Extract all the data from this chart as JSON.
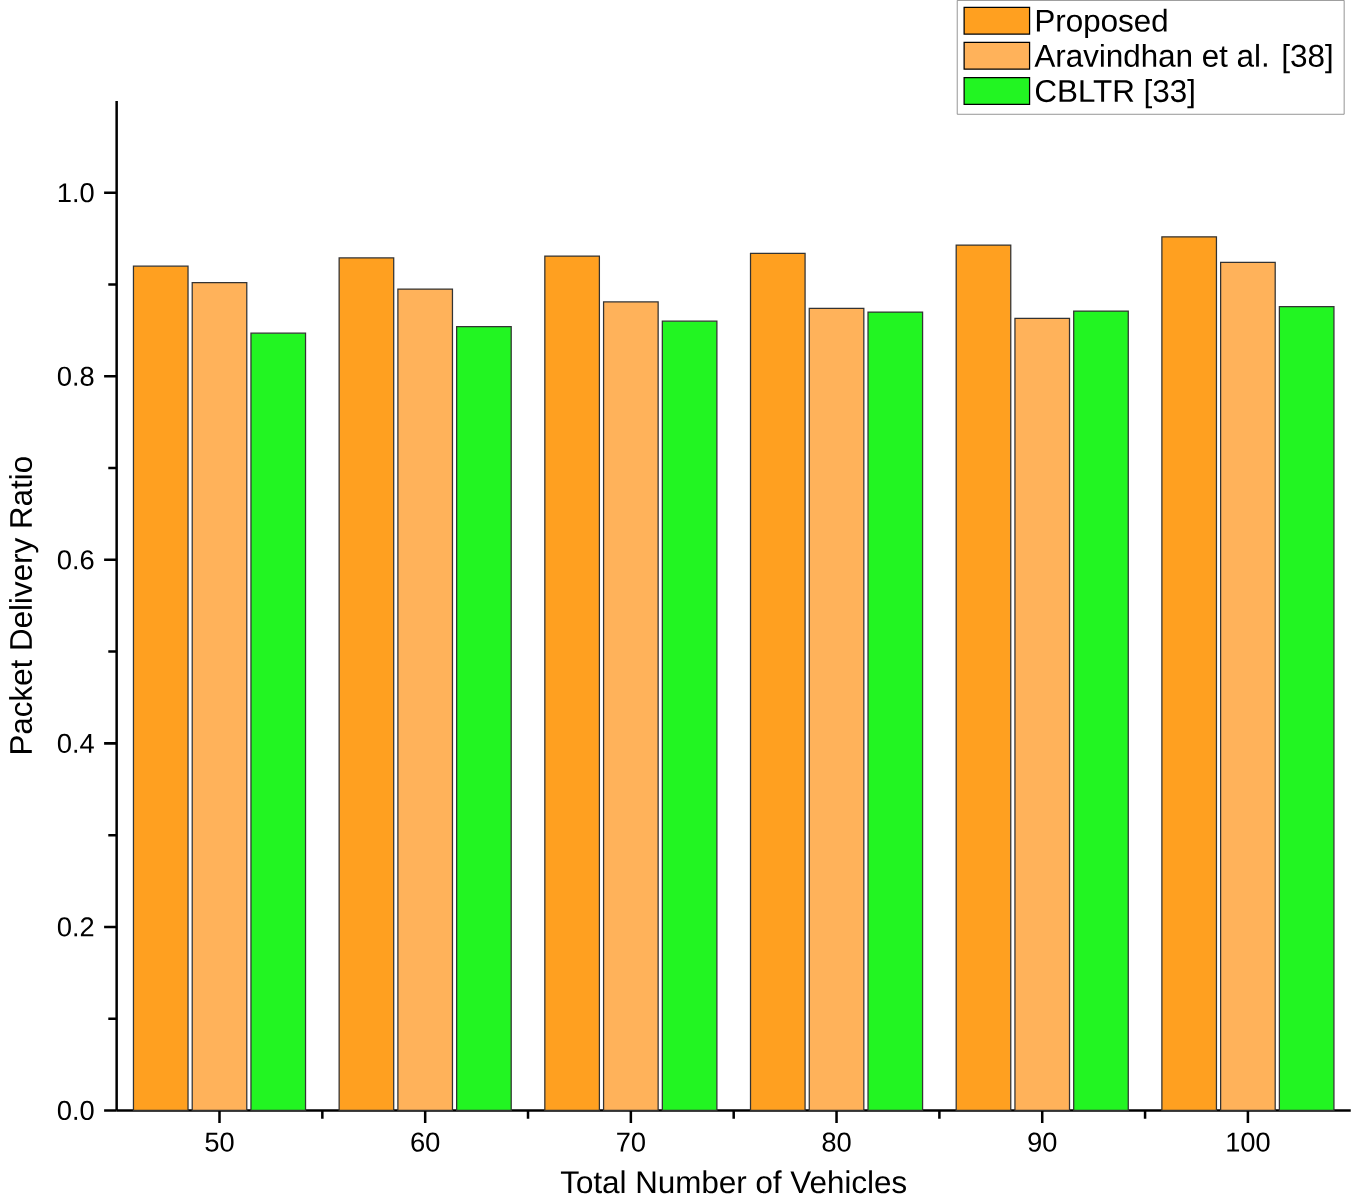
{
  "chart_data": {
    "type": "bar",
    "xlabel": "Total Number of Vehicles",
    "ylabel": "Packet Delivery Ratio",
    "categories": [
      "50",
      "60",
      "70",
      "80",
      "90",
      "100"
    ],
    "series": [
      {
        "name": "Proposed",
        "color": "#ffa020",
        "values": [
          0.92,
          0.929,
          0.931,
          0.934,
          0.943,
          0.952
        ]
      },
      {
        "name": "Aravindhan et al. [38]",
        "color": "#ffb25a",
        "values": [
          0.902,
          0.895,
          0.881,
          0.874,
          0.863,
          0.924
        ]
      },
      {
        "name": "CBLTR [33]",
        "color": "#22f522",
        "values": [
          0.847,
          0.854,
          0.86,
          0.87,
          0.871,
          0.876
        ]
      }
    ],
    "ylim": [
      0,
      1.1
    ],
    "yticks": [
      {
        "value": 0,
        "label": "0.0"
      },
      {
        "value": 0.2,
        "label": "0.2"
      },
      {
        "value": 0.4,
        "label": "0.4"
      },
      {
        "value": 0.6,
        "label": "0.6"
      },
      {
        "value": 0.8,
        "label": "0.8"
      },
      {
        "value": 1.0,
        "label": "1.0"
      }
    ],
    "legend": "top right",
    "grid": false
  }
}
